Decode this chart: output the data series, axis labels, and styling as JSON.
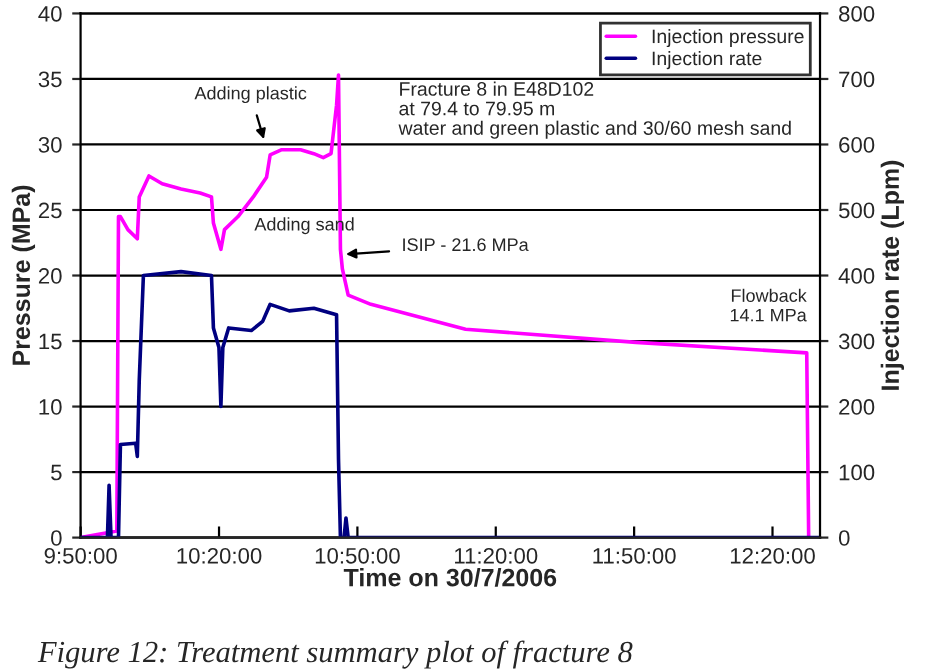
{
  "chart_data": {
    "type": "line",
    "xlabel": "Time on 30/7/2006",
    "ylabel": "Pressure (MPa)",
    "y2label": "Injection rate (Lpm)",
    "xlim": [
      9.833,
      12.505
    ],
    "xticks": [
      {
        "value": 9.8333,
        "label": "9:50:00"
      },
      {
        "value": 10.3333,
        "label": "10:20:00"
      },
      {
        "value": 10.8333,
        "label": "10:50:00"
      },
      {
        "value": 11.3333,
        "label": "11:20:00"
      },
      {
        "value": 11.8333,
        "label": "11:50:00"
      },
      {
        "value": 12.3333,
        "label": "12:20:00"
      }
    ],
    "ylim": [
      0,
      40
    ],
    "yticks": [
      0,
      5,
      10,
      15,
      20,
      25,
      30,
      35,
      40
    ],
    "y2lim": [
      0,
      800
    ],
    "y2ticks": [
      0,
      100,
      200,
      300,
      400,
      500,
      600,
      700,
      800
    ],
    "grid": "y",
    "legend": "top right",
    "series": [
      {
        "name": "Injection pressure",
        "color": "#ff00ff",
        "x": [
          9.833,
          9.964,
          9.97,
          9.977,
          10.004,
          10.038,
          10.045,
          10.08,
          10.128,
          10.196,
          10.265,
          10.306,
          10.313,
          10.34,
          10.353,
          10.402,
          10.457,
          10.505,
          10.518,
          10.56,
          10.628,
          10.676,
          10.71,
          10.738,
          10.758,
          10.765,
          10.772,
          10.779,
          10.8,
          10.882,
          11.224,
          11.84,
          12.457,
          12.464
        ],
        "values": [
          0,
          0.5,
          24.5,
          24.5,
          23.5,
          22.8,
          26,
          27.6,
          27.0,
          26.6,
          26.3,
          26.0,
          24,
          22.0,
          23.5,
          24.5,
          26.0,
          27.5,
          29.2,
          29.6,
          29.6,
          29.3,
          29.0,
          29.3,
          33,
          35.3,
          22,
          20.5,
          18.5,
          17.8,
          15.9,
          14.9,
          14.1,
          0
        ]
      },
      {
        "name": "Injection rate",
        "color": "#000080",
        "axis": "y2",
        "x": [
          9.833,
          9.93,
          9.936,
          9.943,
          9.97,
          9.977,
          10.032,
          10.038,
          10.045,
          10.06,
          10.196,
          10.306,
          10.313,
          10.333,
          10.34,
          10.347,
          10.368,
          10.45,
          10.491,
          10.518,
          10.587,
          10.676,
          10.758,
          10.765,
          10.772,
          10.785,
          10.792,
          10.8,
          12.505
        ],
        "values": [
          0,
          0,
          80,
          0,
          0,
          142,
          144,
          124,
          240,
          400,
          406,
          400,
          320,
          290,
          200,
          290,
          320,
          316,
          330,
          356,
          346,
          350,
          340,
          120,
          0,
          0,
          30,
          0,
          0
        ]
      }
    ],
    "annotations": [
      "Adding plastic",
      "Adding sand",
      "Fracture 8 in E48D102\nat 79.4 to 79.95 m\nwater and green plastic and 30/60 mesh sand",
      {
        "text": "ISIP - 21.6 MPa",
        "x": 10.772,
        "y": 21.6
      },
      {
        "text": "Flowback\n14.1 MPa",
        "x": 12.457,
        "y": 14.1
      },
      "Figure 12: Treatment summary plot of fracture 8"
    ]
  }
}
